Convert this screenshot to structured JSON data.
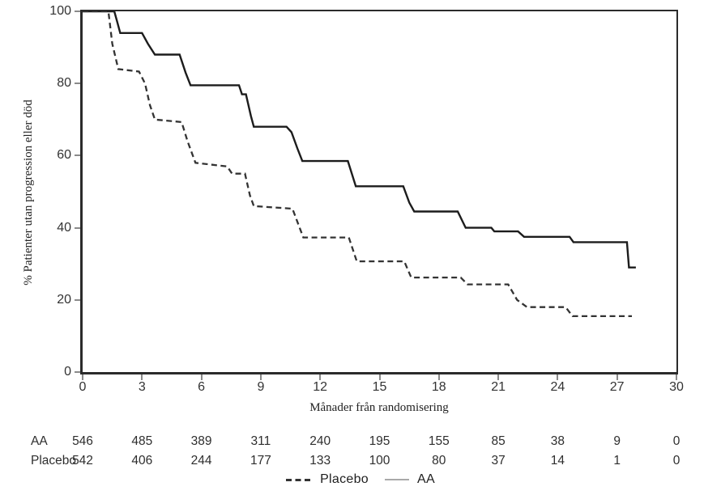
{
  "chart_data": {
    "type": "line",
    "subtype": "kaplan-meier-step-curves",
    "title": "",
    "xlabel": "Månader från randomisering",
    "ylabel": "% Patienter utan progression eller död",
    "xlim": [
      0,
      30
    ],
    "ylim": [
      0,
      100
    ],
    "x_ticks": [
      "0",
      "3",
      "6",
      "9",
      "12",
      "15",
      "18",
      "21",
      "24",
      "27",
      "30"
    ],
    "y_ticks": [
      "100",
      "80",
      "60",
      "40",
      "20",
      "0"
    ],
    "grid": "off",
    "legend_position": "bottom-center",
    "axis_color": "#2b2b2b",
    "tick_color": "#8a8a8a",
    "text_color": "#333333",
    "series": [
      {
        "name": "AA",
        "line_style": "solid",
        "color": "#1c1c1c",
        "points_month_percent": [
          [
            0,
            100
          ],
          [
            1.6,
            100
          ],
          [
            1.75,
            97
          ],
          [
            1.9,
            94
          ],
          [
            3.0,
            94
          ],
          [
            3.3,
            91
          ],
          [
            3.65,
            88
          ],
          [
            4.9,
            88
          ],
          [
            5.2,
            83
          ],
          [
            5.45,
            79.5
          ],
          [
            7.9,
            79.5
          ],
          [
            8.05,
            77
          ],
          [
            8.25,
            77
          ],
          [
            8.5,
            71
          ],
          [
            8.65,
            68
          ],
          [
            10.3,
            68
          ],
          [
            10.55,
            66.5
          ],
          [
            10.85,
            62
          ],
          [
            11.1,
            58.5
          ],
          [
            13.4,
            58.5
          ],
          [
            13.8,
            51.5
          ],
          [
            16.2,
            51.5
          ],
          [
            16.5,
            47
          ],
          [
            16.75,
            44.5
          ],
          [
            18.95,
            44.5
          ],
          [
            19.35,
            40
          ],
          [
            20.65,
            40
          ],
          [
            20.8,
            39
          ],
          [
            22.0,
            39
          ],
          [
            22.3,
            37.5
          ],
          [
            24.6,
            37.5
          ],
          [
            24.8,
            36
          ],
          [
            27.5,
            36
          ],
          [
            27.6,
            29
          ],
          [
            27.95,
            29
          ]
        ]
      },
      {
        "name": "Placebo",
        "line_style": "dashed",
        "color": "#333333",
        "points_month_percent": [
          [
            0,
            100
          ],
          [
            1.3,
            100
          ],
          [
            1.5,
            91
          ],
          [
            1.8,
            84
          ],
          [
            2.85,
            83.3
          ],
          [
            3.15,
            80
          ],
          [
            3.4,
            74
          ],
          [
            3.65,
            70
          ],
          [
            5.0,
            69.3
          ],
          [
            5.3,
            64
          ],
          [
            5.7,
            58
          ],
          [
            7.3,
            57
          ],
          [
            7.55,
            55
          ],
          [
            8.2,
            55
          ],
          [
            8.45,
            49
          ],
          [
            8.65,
            46
          ],
          [
            10.6,
            45.3
          ],
          [
            11.15,
            37.3
          ],
          [
            13.45,
            37.3
          ],
          [
            13.85,
            30.7
          ],
          [
            16.25,
            30.7
          ],
          [
            16.6,
            26.2
          ],
          [
            19.1,
            26.2
          ],
          [
            19.45,
            24.3
          ],
          [
            21.5,
            24.3
          ],
          [
            21.95,
            20
          ],
          [
            22.45,
            18
          ],
          [
            24.4,
            18
          ],
          [
            24.75,
            15.5
          ],
          [
            27.75,
            15.5
          ]
        ]
      }
    ],
    "risk_table": {
      "rows": [
        {
          "label": "AA",
          "counts": [
            "546",
            "485",
            "389",
            "311",
            "240",
            "195",
            "155",
            "85",
            "38",
            "9",
            "0"
          ]
        },
        {
          "label": "Placebo",
          "counts": [
            "542",
            "406",
            "244",
            "177",
            "133",
            "100",
            "80",
            "37",
            "14",
            "1",
            "0"
          ]
        }
      ]
    },
    "legend": [
      {
        "label": "Placebo",
        "line_style": "dashed",
        "color": "#333333"
      },
      {
        "label": "AA",
        "line_style": "solid",
        "color": "#a9a9a9"
      }
    ]
  }
}
